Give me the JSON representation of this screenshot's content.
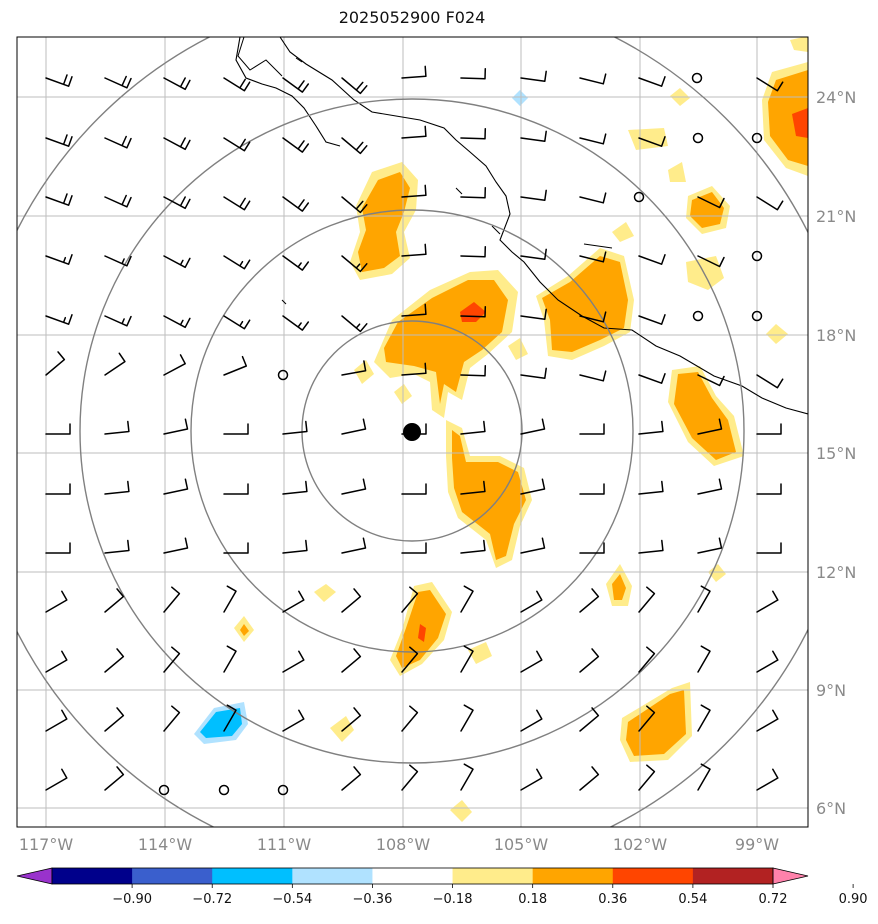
{
  "title": "2025052900 F024",
  "lat_labels": [
    "24°N",
    "21°N",
    "18°N",
    "15°N",
    "12°N",
    "9°N",
    "6°N"
  ],
  "lon_labels": [
    "117°W",
    "114°W",
    "111°W",
    "108°W",
    "105°W",
    "102°W",
    "99°W"
  ],
  "colorbar": {
    "tick_labels": [
      "−0.90",
      "−0.72",
      "−0.54",
      "−0.36",
      "−0.18",
      "0.18",
      "0.36",
      "0.54",
      "0.72",
      "0.90"
    ],
    "colors": [
      "#9932cc",
      "#00008b",
      "#3a5fcd",
      "#00bfff",
      "#b0e2ff",
      "#ffffff",
      "#ffec8b",
      "#ffa500",
      "#ff4500",
      "#b22222",
      "#ff82ab"
    ]
  },
  "storm_marker": {
    "lat": 15.6,
    "lon": -107.7
  },
  "range_rings_count": 4
}
